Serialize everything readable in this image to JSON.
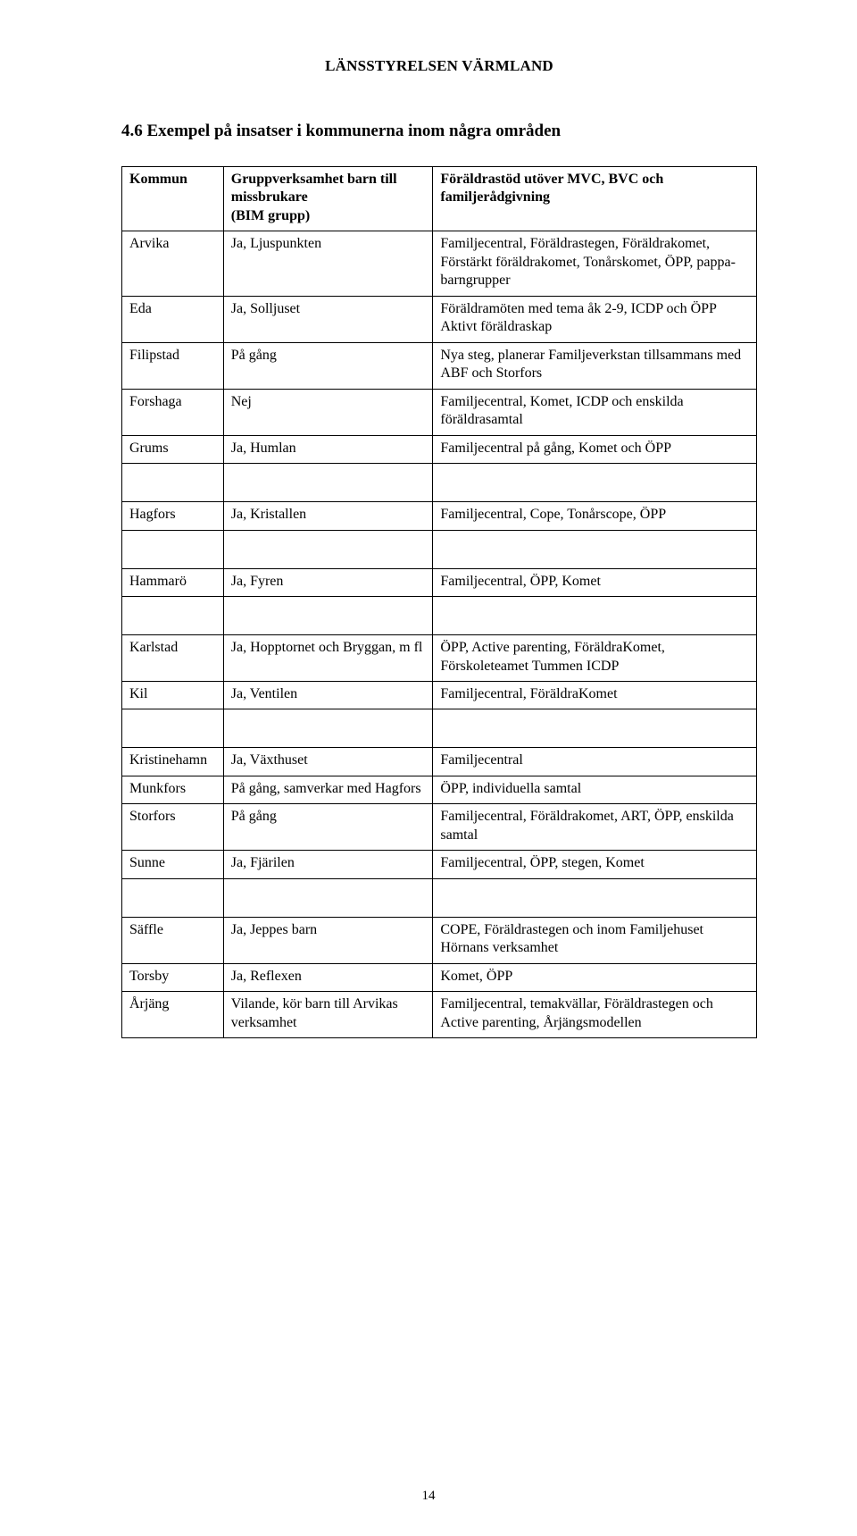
{
  "doc_header": "LÄNSSTYRELSEN VÄRMLAND",
  "section_heading": "4.6   Exempel på insatser i kommunerna inom några områden",
  "page_number": "14",
  "columns": {
    "c0": "Kommun",
    "c1": "Gruppverksamhet barn till missbrukare\n(BIM grupp)",
    "c2": "Föräldrastöd utöver MVC, BVC och familjerådgivning"
  },
  "groups": [
    {
      "rows": [
        {
          "c0": "Arvika",
          "c1": "Ja, Ljuspunkten",
          "c2": "Familjecentral, Föräldrastegen, Föräldrakomet, Förstärkt föräldrakomet, Tonårskomet, ÖPP, pappa-barngrupper"
        },
        {
          "c0": "Eda",
          "c1": "Ja, Solljuset",
          "c2": "Föräldramöten med tema åk 2-9, ICDP och ÖPP Aktivt föräldraskap"
        },
        {
          "c0": "Filipstad",
          "c1": "På gång",
          "c2": "Nya steg, planerar Familjeverkstan tillsammans med ABF och Storfors"
        },
        {
          "c0": "Forshaga",
          "c1": "Nej",
          "c2": "Familjecentral, Komet, ICDP och enskilda föräldrasamtal"
        },
        {
          "c0": "Grums",
          "c1": "Ja, Humlan",
          "c2": "Familjecentral på gång, Komet och ÖPP"
        }
      ]
    },
    {
      "rows": [
        {
          "c0": "Hagfors",
          "c1": "Ja, Kristallen",
          "c2": "Familjecentral, Cope, Tonårscope, ÖPP"
        }
      ]
    },
    {
      "rows": [
        {
          "c0": "Hammarö",
          "c1": "Ja, Fyren",
          "c2": "Familjecentral, ÖPP, Komet"
        }
      ]
    },
    {
      "rows": [
        {
          "c0": "Karlstad",
          "c1": "Ja, Hopptornet och Bryggan, m fl",
          "c2": "ÖPP, Active parenting, FöräldraKomet,\nFörskoleteamet Tummen ICDP"
        },
        {
          "c0": "Kil",
          "c1": "Ja, Ventilen",
          "c2": "Familjecentral, FöräldraKomet"
        }
      ]
    },
    {
      "rows": [
        {
          "c0": "Kristinehamn",
          "c1": "Ja, Växthuset",
          "c2": "Familjecentral"
        },
        {
          "c0": "Munkfors",
          "c1": "På gång, samverkar med Hagfors",
          "c2": "ÖPP, individuella samtal"
        },
        {
          "c0": "Storfors",
          "c1": "På gång",
          "c2": "Familjecentral, Föräldrakomet, ART, ÖPP, enskilda samtal"
        },
        {
          "c0": "Sunne",
          "c1": "Ja, Fjärilen",
          "c2": "Familjecentral, ÖPP, stegen, Komet"
        }
      ]
    },
    {
      "rows": [
        {
          "c0": "Säffle",
          "c1": "Ja, Jeppes barn",
          "c2": "COPE, Föräldrastegen och inom Familjehuset Hörnans verksamhet"
        },
        {
          "c0": "Torsby",
          "c1": "Ja, Reflexen",
          "c2": "Komet, ÖPP"
        },
        {
          "c0": "Årjäng",
          "c1": "Vilande, kör barn till Arvikas verksamhet",
          "c2": "Familjecentral, temakvällar, Föräldrastegen och Active parenting, Årjängsmodellen"
        }
      ]
    }
  ]
}
